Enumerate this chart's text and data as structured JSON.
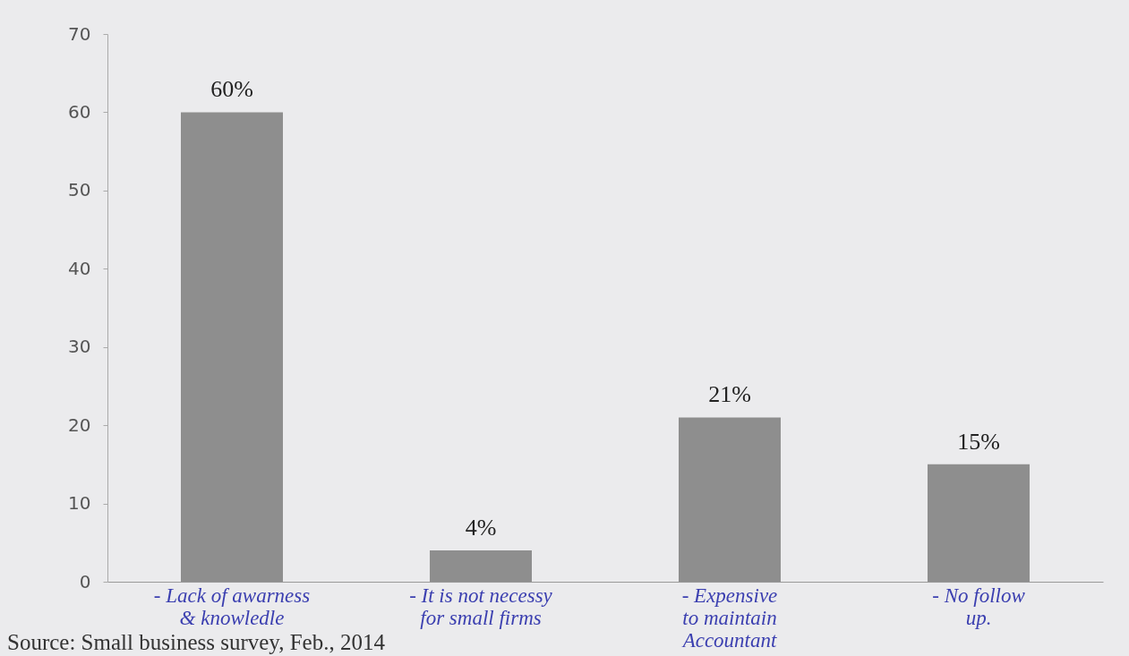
{
  "chart_data": {
    "type": "bar",
    "categories": [
      "- Lack of awarness\n& knowledle",
      "- It is not necessy\nfor small firms",
      "- Expensive\nto maintain\nAccountant",
      "- No follow\nup."
    ],
    "values": [
      60,
      4,
      21,
      15
    ],
    "value_labels": [
      "60%",
      "4%",
      "21%",
      "15%"
    ],
    "color": "#8e8e8e",
    "ylim": [
      0,
      70
    ],
    "yticks": [
      0,
      10,
      20,
      30,
      40,
      50,
      60,
      70
    ],
    "grid": false,
    "annotations": [
      "Source: Small business survey, Feb., 2014"
    ]
  }
}
